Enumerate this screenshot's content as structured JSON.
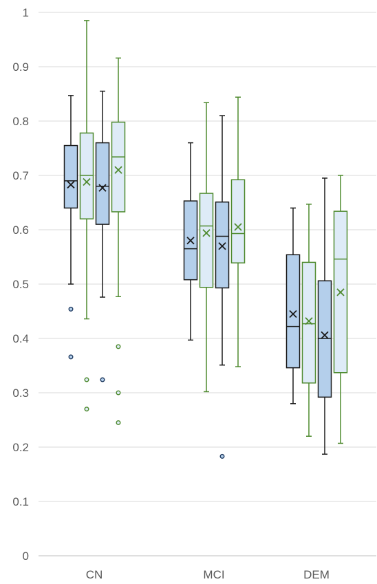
{
  "chart_data": {
    "type": "boxplot",
    "categories": [
      "CN",
      "MCI",
      "DEM"
    ],
    "ylim": [
      0,
      1
    ],
    "yticks": [
      0,
      0.1,
      0.2,
      0.3,
      0.4,
      0.5,
      0.6,
      0.7,
      0.8,
      0.9,
      1
    ],
    "ytick_labels": [
      "0",
      "0.1",
      "0.2",
      "0.3",
      "0.4",
      "0.5",
      "0.6",
      "0.7",
      "0.8",
      "0.9",
      "1"
    ],
    "grid": true,
    "colors": {
      "box_fill_dark": "#b4cfeb",
      "box_fill_light": "#deebf7",
      "edge_dark": "#1a1a1a",
      "edge_green": "#4e8a2e",
      "outlier_dark_edge": "#1f3a5f",
      "grid": "#d9d9d9"
    },
    "series": [
      {
        "fill": "box_fill_dark",
        "edge": "edge_dark",
        "boxes": [
          {
            "min": 0.5,
            "q1": 0.64,
            "median": 0.69,
            "q3": 0.755,
            "max": 0.847,
            "mean": 0.683,
            "outliers": [
              0.454,
              0.366
            ]
          },
          {
            "min": 0.397,
            "q1": 0.508,
            "median": 0.565,
            "q3": 0.653,
            "max": 0.76,
            "mean": 0.58,
            "outliers": []
          },
          {
            "min": 0.28,
            "q1": 0.346,
            "median": 0.422,
            "q3": 0.554,
            "max": 0.64,
            "mean": 0.445,
            "outliers": []
          }
        ]
      },
      {
        "fill": "box_fill_light",
        "edge": "edge_green",
        "boxes": [
          {
            "min": 0.436,
            "q1": 0.62,
            "median": 0.7,
            "q3": 0.778,
            "max": 0.985,
            "mean": 0.688,
            "outliers": [
              0.324,
              0.27
            ]
          },
          {
            "min": 0.302,
            "q1": 0.494,
            "median": 0.607,
            "q3": 0.667,
            "max": 0.834,
            "mean": 0.594,
            "outliers": []
          },
          {
            "min": 0.22,
            "q1": 0.318,
            "median": 0.427,
            "q3": 0.54,
            "max": 0.647,
            "mean": 0.432,
            "outliers": []
          }
        ]
      },
      {
        "fill": "box_fill_dark",
        "edge": "edge_dark",
        "boxes": [
          {
            "min": 0.476,
            "q1": 0.61,
            "median": 0.68,
            "q3": 0.76,
            "max": 0.855,
            "mean": 0.677,
            "outliers": [
              0.324
            ]
          },
          {
            "min": 0.351,
            "q1": 0.493,
            "median": 0.588,
            "q3": 0.651,
            "max": 0.81,
            "mean": 0.57,
            "outliers": [
              0.183
            ]
          },
          {
            "min": 0.187,
            "q1": 0.292,
            "median": 0.4,
            "q3": 0.506,
            "max": 0.695,
            "mean": 0.406,
            "outliers": []
          }
        ]
      },
      {
        "fill": "box_fill_light",
        "edge": "edge_green",
        "boxes": [
          {
            "min": 0.477,
            "q1": 0.633,
            "median": 0.734,
            "q3": 0.798,
            "max": 0.916,
            "mean": 0.71,
            "outliers": [
              0.385,
              0.3,
              0.245
            ]
          },
          {
            "min": 0.348,
            "q1": 0.539,
            "median": 0.593,
            "q3": 0.692,
            "max": 0.844,
            "mean": 0.605,
            "outliers": []
          },
          {
            "min": 0.207,
            "q1": 0.337,
            "median": 0.546,
            "q3": 0.634,
            "max": 0.7,
            "mean": 0.485,
            "outliers": []
          }
        ]
      }
    ]
  }
}
